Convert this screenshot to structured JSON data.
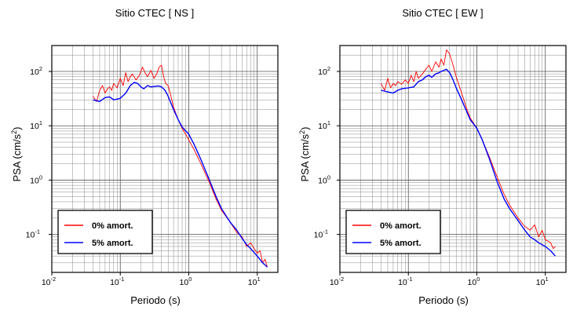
{
  "chart_data": [
    {
      "type": "line",
      "title": "Sitio CTEC [ NS ]",
      "xlabel": "Periodo (s)",
      "ylabel": "PSA (cm/s²)",
      "xscale": "log",
      "yscale": "log",
      "xlim": [
        0.01,
        20
      ],
      "ylim": [
        0.02,
        300
      ],
      "grid": true,
      "legend_position": "bottom-left",
      "x_ticks": [
        {
          "value": 0.01,
          "base": "10",
          "exp": "-2"
        },
        {
          "value": 0.1,
          "base": "10",
          "exp": "-1"
        },
        {
          "value": 1,
          "base": "10",
          "exp": "0"
        },
        {
          "value": 10,
          "base": "10",
          "exp": "1"
        }
      ],
      "y_ticks": [
        {
          "value": 0.1,
          "base": "10",
          "exp": "-1"
        },
        {
          "value": 1,
          "base": "10",
          "exp": "0"
        },
        {
          "value": 10,
          "base": "10",
          "exp": "1"
        },
        {
          "value": 100,
          "base": "10",
          "exp": "2"
        }
      ],
      "series": [
        {
          "name": "0% amort.",
          "color": "#ff0000",
          "x": [
            0.04,
            0.045,
            0.05,
            0.055,
            0.06,
            0.065,
            0.07,
            0.075,
            0.08,
            0.09,
            0.1,
            0.11,
            0.12,
            0.13,
            0.14,
            0.15,
            0.17,
            0.19,
            0.21,
            0.23,
            0.25,
            0.28,
            0.31,
            0.34,
            0.37,
            0.4,
            0.43,
            0.46,
            0.5,
            0.55,
            0.6,
            0.7,
            0.8,
            0.9,
            1.0,
            1.2,
            1.5,
            2.0,
            2.5,
            3.0,
            4.0,
            5.0,
            6.0,
            7.0,
            8.0,
            9.0,
            10.0,
            11.0,
            12.0,
            13.0,
            14.0
          ],
          "y": [
            35,
            28,
            45,
            55,
            40,
            48,
            52,
            45,
            60,
            50,
            75,
            55,
            95,
            65,
            80,
            90,
            70,
            85,
            120,
            95,
            80,
            105,
            75,
            90,
            120,
            130,
            80,
            60,
            55,
            35,
            22,
            13,
            9,
            7,
            5.5,
            3.6,
            2.0,
            0.9,
            0.45,
            0.28,
            0.17,
            0.11,
            0.09,
            0.06,
            0.07,
            0.055,
            0.045,
            0.05,
            0.03,
            0.035,
            0.025
          ]
        },
        {
          "name": "5% amort.",
          "color": "#0000ff",
          "x": [
            0.04,
            0.05,
            0.06,
            0.07,
            0.08,
            0.09,
            0.1,
            0.12,
            0.14,
            0.16,
            0.18,
            0.2,
            0.22,
            0.25,
            0.28,
            0.32,
            0.36,
            0.4,
            0.45,
            0.5,
            0.55,
            0.6,
            0.7,
            0.8,
            1.0,
            1.2,
            1.5,
            2.0,
            2.5,
            3.0,
            4.0,
            5.0,
            6.0,
            7.0,
            8.0,
            10.0,
            12.0,
            14.0
          ],
          "y": [
            30,
            28,
            33,
            34,
            30,
            31,
            32,
            40,
            55,
            63,
            60,
            52,
            48,
            55,
            52,
            53,
            54,
            52,
            45,
            35,
            26,
            20,
            13,
            9.5,
            7,
            4.5,
            2.4,
            1.0,
            0.5,
            0.3,
            0.17,
            0.12,
            0.085,
            0.065,
            0.055,
            0.04,
            0.03,
            0.025
          ]
        }
      ]
    },
    {
      "type": "line",
      "title": "Sitio CTEC [ EW ]",
      "xlabel": "Periodo (s)",
      "ylabel": "PSA (cm/s²)",
      "xscale": "log",
      "yscale": "log",
      "xlim": [
        0.01,
        20
      ],
      "ylim": [
        0.02,
        300
      ],
      "grid": true,
      "legend_position": "bottom-left",
      "x_ticks": [
        {
          "value": 0.01,
          "base": "10",
          "exp": "-2"
        },
        {
          "value": 0.1,
          "base": "10",
          "exp": "-1"
        },
        {
          "value": 1,
          "base": "10",
          "exp": "0"
        },
        {
          "value": 10,
          "base": "10",
          "exp": "1"
        }
      ],
      "y_ticks": [
        {
          "value": 0.1,
          "base": "10",
          "exp": "-1"
        },
        {
          "value": 1,
          "base": "10",
          "exp": "0"
        },
        {
          "value": 10,
          "base": "10",
          "exp": "1"
        },
        {
          "value": 100,
          "base": "10",
          "exp": "2"
        }
      ],
      "series": [
        {
          "name": "0% amort.",
          "color": "#ff0000",
          "x": [
            0.04,
            0.045,
            0.05,
            0.055,
            0.06,
            0.065,
            0.07,
            0.08,
            0.09,
            0.1,
            0.11,
            0.12,
            0.13,
            0.14,
            0.16,
            0.18,
            0.2,
            0.22,
            0.25,
            0.28,
            0.3,
            0.33,
            0.36,
            0.4,
            0.45,
            0.5,
            0.6,
            0.7,
            0.8,
            1.0,
            1.2,
            1.5,
            2.0,
            2.5,
            3.0,
            4.0,
            5.0,
            6.0,
            7.0,
            8.0,
            9.0,
            10.0,
            11.0,
            12.0,
            13.0,
            14.0
          ],
          "y": [
            60,
            45,
            75,
            50,
            60,
            55,
            65,
            58,
            70,
            60,
            85,
            65,
            100,
            75,
            90,
            110,
            130,
            100,
            150,
            120,
            170,
            130,
            250,
            210,
            130,
            80,
            40,
            22,
            14,
            9,
            5.5,
            2.8,
            1.1,
            0.55,
            0.35,
            0.2,
            0.14,
            0.12,
            0.15,
            0.09,
            0.12,
            0.08,
            0.075,
            0.07,
            0.055,
            0.06
          ]
        },
        {
          "name": "5% amort.",
          "color": "#0000ff",
          "x": [
            0.04,
            0.05,
            0.06,
            0.07,
            0.08,
            0.1,
            0.12,
            0.14,
            0.16,
            0.18,
            0.2,
            0.22,
            0.25,
            0.28,
            0.3,
            0.33,
            0.36,
            0.4,
            0.45,
            0.5,
            0.6,
            0.7,
            0.8,
            1.0,
            1.2,
            1.5,
            2.0,
            2.5,
            3.0,
            4.0,
            5.0,
            6.0,
            7.0,
            8.0,
            10.0,
            12.0,
            14.0
          ],
          "y": [
            45,
            42,
            40,
            45,
            48,
            50,
            52,
            65,
            70,
            80,
            85,
            78,
            90,
            95,
            100,
            105,
            110,
            95,
            70,
            50,
            30,
            19,
            13,
            9,
            5.5,
            2.6,
            0.9,
            0.45,
            0.3,
            0.18,
            0.12,
            0.09,
            0.08,
            0.07,
            0.06,
            0.05,
            0.04
          ]
        }
      ]
    }
  ]
}
